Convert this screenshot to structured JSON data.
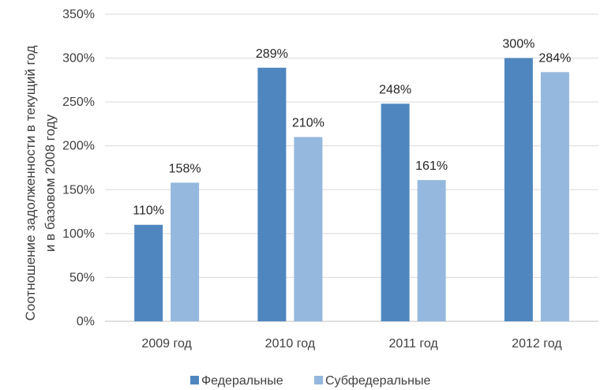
{
  "chart_data": {
    "type": "bar",
    "title": "",
    "ylabel_lines": [
      "Соотношение задолженности в текущий год",
      "и в базовом 2008 году"
    ],
    "categories": [
      "2009 год",
      "2010 год",
      "2011 год",
      "2012 год"
    ],
    "ylim": [
      0,
      350
    ],
    "yticks": [
      0,
      50,
      100,
      150,
      200,
      250,
      300,
      350
    ],
    "tick_suffix": "%",
    "grid": true,
    "legend_position": "bottom",
    "series": [
      {
        "name": "Федеральные",
        "color": "#4f86bf",
        "values": [
          110,
          289,
          248,
          300
        ],
        "labels": [
          "110%",
          "289%",
          "248%",
          "300%"
        ]
      },
      {
        "name": "Субфедеральные",
        "color": "#95b8de",
        "values": [
          158,
          210,
          161,
          284
        ],
        "labels": [
          "158%",
          "210%",
          "161%",
          "284%"
        ]
      }
    ]
  }
}
